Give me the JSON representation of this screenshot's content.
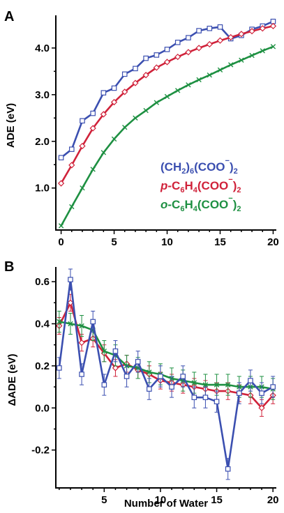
{
  "colors": {
    "blue": "#3b4fb0",
    "red": "#d0223a",
    "green": "#1e9042"
  },
  "chart_data": [
    {
      "type": "line",
      "panel_label": "A",
      "xlabel": "",
      "ylabel": "ADE (eV)",
      "xlim": [
        -0.5,
        20.3
      ],
      "ylim": [
        0.1,
        4.7
      ],
      "xticks": [
        0,
        5,
        10,
        15,
        20
      ],
      "xticks_labels": [
        "0",
        "5",
        "10",
        "15",
        "20"
      ],
      "yticks": [
        1.0,
        2.0,
        3.0,
        4.0
      ],
      "yticks_labels": [
        "1.0",
        "2.0",
        "3.0",
        "4.0"
      ],
      "legend_lines": [
        [
          "(CH",
          "2",
          ")",
          "6",
          "(COO",
          "−",
          ")",
          "2"
        ],
        [
          "p",
          "-C",
          "6",
          "H",
          "4",
          "(COO",
          "−",
          ")",
          "2"
        ],
        [
          "o",
          "-C",
          "6",
          "H",
          "4",
          "(COO",
          "−",
          ")",
          "2"
        ]
      ],
      "series": [
        {
          "color": "#3b4fb0",
          "marker": "square",
          "x": [
            0,
            1,
            2,
            3,
            4,
            5,
            6,
            7,
            8,
            9,
            10,
            11,
            12,
            13,
            14,
            15,
            16,
            17,
            18,
            19,
            20
          ],
          "y": [
            1.65,
            1.83,
            2.44,
            2.6,
            3.04,
            3.14,
            3.44,
            3.56,
            3.78,
            3.85,
            3.97,
            4.12,
            4.22,
            4.37,
            4.42,
            4.45,
            4.2,
            4.27,
            4.4,
            4.47,
            4.57
          ]
        },
        {
          "color": "#d0223a",
          "marker": "diamond",
          "x": [
            0,
            1,
            2,
            3,
            4,
            5,
            6,
            7,
            8,
            9,
            10,
            11,
            12,
            13,
            14,
            15,
            16,
            17,
            18,
            19,
            20
          ],
          "y": [
            1.1,
            1.49,
            1.9,
            2.28,
            2.58,
            2.84,
            3.06,
            3.25,
            3.42,
            3.58,
            3.7,
            3.81,
            3.91,
            4.0,
            4.08,
            4.16,
            4.23,
            4.3,
            4.36,
            4.42,
            4.47
          ]
        },
        {
          "color": "#1e9042",
          "marker": "x",
          "x": [
            0,
            1,
            2,
            3,
            4,
            5,
            6,
            7,
            8,
            9,
            10,
            11,
            12,
            13,
            14,
            15,
            16,
            17,
            18,
            19,
            20
          ],
          "y": [
            0.19,
            0.6,
            1.0,
            1.4,
            1.76,
            2.05,
            2.3,
            2.5,
            2.66,
            2.83,
            2.96,
            3.09,
            3.21,
            3.32,
            3.42,
            3.53,
            3.64,
            3.74,
            3.84,
            3.94,
            4.03
          ]
        }
      ]
    },
    {
      "type": "line",
      "panel_label": "B",
      "xlabel": "Number of Water",
      "ylabel": "ΔADE (eV)",
      "xlim": [
        0.7,
        20.3
      ],
      "ylim": [
        -0.38,
        0.67
      ],
      "xticks": [
        5,
        10,
        15,
        20
      ],
      "xticks_labels": [
        "5",
        "10",
        "15",
        "20"
      ],
      "yticks": [
        -0.2,
        0.0,
        0.2,
        0.4,
        0.6
      ],
      "yticks_labels": [
        "-0.2",
        "0.0",
        "0.2",
        "0.4",
        "0.6"
      ],
      "series": [
        {
          "color": "#d0223a",
          "marker": "diamond",
          "x": [
            1,
            2,
            3,
            4,
            5,
            6,
            7,
            8,
            9,
            10,
            11,
            12,
            13,
            14,
            15,
            16,
            17,
            18,
            19,
            20
          ],
          "y": [
            0.39,
            0.5,
            0.31,
            0.33,
            0.26,
            0.19,
            0.21,
            0.18,
            0.16,
            0.13,
            0.12,
            0.11,
            0.1,
            0.09,
            0.08,
            0.08,
            0.07,
            0.06,
            0.0,
            0.06
          ],
          "err": [
            0.04,
            0.04,
            0.04,
            0.04,
            0.04,
            0.04,
            0.04,
            0.04,
            0.04,
            0.04,
            0.04,
            0.04,
            0.04,
            0.04,
            0.04,
            0.04,
            0.04,
            0.04,
            0.04,
            0.04
          ]
        },
        {
          "color": "#1e9042",
          "marker": "x",
          "x": [
            1,
            2,
            3,
            4,
            5,
            6,
            7,
            8,
            9,
            10,
            11,
            12,
            13,
            14,
            15,
            16,
            17,
            18,
            19,
            20
          ],
          "y": [
            0.41,
            0.4,
            0.39,
            0.37,
            0.27,
            0.25,
            0.2,
            0.19,
            0.17,
            0.16,
            0.14,
            0.13,
            0.12,
            0.11,
            0.11,
            0.11,
            0.1,
            0.1,
            0.1,
            0.09
          ],
          "err": [
            0.05,
            0.05,
            0.05,
            0.05,
            0.05,
            0.05,
            0.05,
            0.05,
            0.05,
            0.05,
            0.05,
            0.05,
            0.05,
            0.05,
            0.05,
            0.05,
            0.05,
            0.05,
            0.05,
            0.05
          ]
        },
        {
          "color": "#3b4fb0",
          "marker": "square",
          "x": [
            1,
            2,
            3,
            4,
            5,
            6,
            7,
            8,
            9,
            10,
            11,
            12,
            13,
            14,
            15,
            16,
            17,
            18,
            19,
            20
          ],
          "y": [
            0.19,
            0.61,
            0.16,
            0.41,
            0.11,
            0.27,
            0.15,
            0.22,
            0.09,
            0.15,
            0.1,
            0.15,
            0.05,
            0.05,
            0.03,
            -0.29,
            0.07,
            0.13,
            0.07,
            0.1
          ],
          "err": [
            0.05,
            0.05,
            0.05,
            0.05,
            0.05,
            0.05,
            0.05,
            0.05,
            0.05,
            0.05,
            0.05,
            0.05,
            0.05,
            0.05,
            0.05,
            0.05,
            0.05,
            0.05,
            0.05,
            0.05
          ]
        }
      ]
    }
  ]
}
